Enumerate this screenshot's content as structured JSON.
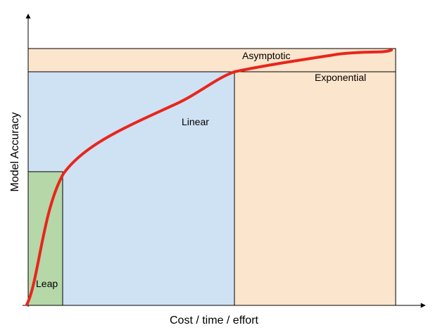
{
  "diagram": {
    "x_axis_label": "Cost / time / effort",
    "y_axis_label": "Model Accuracy",
    "regions": {
      "leap": "Leap",
      "linear": "Linear",
      "asymptotic": "Asymptotic",
      "exponential": "Exponential"
    },
    "colors": {
      "leap": "#b6d7a8",
      "linear": "#cfe2f3",
      "asymptotic": "#fce5cd",
      "exponential": "#fce5cd",
      "curve": "#e8261c",
      "axis": "#000000"
    }
  }
}
